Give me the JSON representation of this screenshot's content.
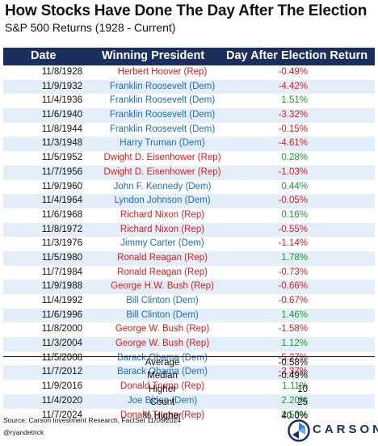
{
  "title": "How Stocks Have Done The Day After The Election",
  "subtitle": "S&P 500 Returns (1928 - Current)",
  "columns": {
    "date": "Date",
    "president": "Winning President",
    "return": "Day After Election Return"
  },
  "colors": {
    "header_bg": "#1b2f5e",
    "rep": "#e01b1b",
    "dem": "#1a6cc4",
    "negative": "#e01b1b",
    "positive": "#1a9a2e",
    "stripe": "#e4eef9"
  },
  "rows": [
    {
      "date": "11/8/1928",
      "president": "Herbert Hoover (Rep)",
      "party": "rep",
      "return": "-0.49%",
      "sign": "neg"
    },
    {
      "date": "11/9/1932",
      "president": "Franklin Roosevelt (Dem)",
      "party": "dem",
      "return": "-4.42%",
      "sign": "neg"
    },
    {
      "date": "11/4/1936",
      "president": "Franklin Roosevelt (Dem)",
      "party": "dem",
      "return": "1.51%",
      "sign": "pos"
    },
    {
      "date": "11/6/1940",
      "president": "Franklin Roosevelt (Dem)",
      "party": "dem",
      "return": "-3.32%",
      "sign": "neg"
    },
    {
      "date": "11/8/1944",
      "president": "Franklin Roosevelt (Dem)",
      "party": "dem",
      "return": "-0.15%",
      "sign": "neg"
    },
    {
      "date": "11/3/1948",
      "president": "Harry Truman (Dem)",
      "party": "dem",
      "return": "-4.61%",
      "sign": "neg"
    },
    {
      "date": "11/5/1952",
      "president": "Dwight D. Eisenhower (Rep)",
      "party": "rep",
      "return": "0.28%",
      "sign": "pos"
    },
    {
      "date": "11/7/1956",
      "president": "Dwight D. Eisenhower (Rep)",
      "party": "rep",
      "return": "-1.03%",
      "sign": "neg"
    },
    {
      "date": "11/9/1960",
      "president": "John F. Kennedy (Dem)",
      "party": "dem",
      "return": "0.44%",
      "sign": "pos"
    },
    {
      "date": "11/4/1964",
      "president": "Lyndon Johnson (Dem)",
      "party": "dem",
      "return": "-0.05%",
      "sign": "neg"
    },
    {
      "date": "11/6/1968",
      "president": "Richard Nixon (Rep)",
      "party": "rep",
      "return": "0.16%",
      "sign": "pos"
    },
    {
      "date": "11/8/1972",
      "president": "Richard Nixon (Rep)",
      "party": "rep",
      "return": "-0.55%",
      "sign": "neg"
    },
    {
      "date": "11/3/1976",
      "president": "Jimmy Carter (Dem)",
      "party": "dem",
      "return": "-1.14%",
      "sign": "neg"
    },
    {
      "date": "11/5/1980",
      "president": "Ronald Reagan (Rep)",
      "party": "rep",
      "return": "1.78%",
      "sign": "pos"
    },
    {
      "date": "11/7/1984",
      "president": "Ronald Reagan (Rep)",
      "party": "rep",
      "return": "-0.73%",
      "sign": "neg"
    },
    {
      "date": "11/9/1988",
      "president": "George H.W. Bush (Rep)",
      "party": "rep",
      "return": "-0.66%",
      "sign": "neg"
    },
    {
      "date": "11/4/1992",
      "president": "Bill Clinton (Dem)",
      "party": "dem",
      "return": "-0.67%",
      "sign": "neg"
    },
    {
      "date": "11/6/1996",
      "president": "Bill Clinton (Dem)",
      "party": "dem",
      "return": "1.46%",
      "sign": "pos"
    },
    {
      "date": "11/8/2000",
      "president": "George W. Bush (Rep)",
      "party": "rep",
      "return": "-1.58%",
      "sign": "neg"
    },
    {
      "date": "11/3/2004",
      "president": "George W. Bush (Rep)",
      "party": "rep",
      "return": "1.12%",
      "sign": "pos"
    },
    {
      "date": "11/5/2008",
      "president": "Barack Obama (Dem)",
      "party": "dem",
      "return": "-5.27%",
      "sign": "neg"
    },
    {
      "date": "11/7/2012",
      "president": "Barack Obama (Dem)",
      "party": "dem",
      "return": "-2.37%",
      "sign": "neg"
    },
    {
      "date": "11/9/2016",
      "president": "Donald Trump (Rep)",
      "party": "rep",
      "return": "1.11%",
      "sign": "pos"
    },
    {
      "date": "11/4/2020",
      "president": "Joe Biden (Dem)",
      "party": "dem",
      "return": "2.20%",
      "sign": "pos"
    },
    {
      "date": "11/7/2024",
      "president": "Donald Trump (Rep)",
      "party": "rep",
      "return": "2.53%",
      "sign": "pos"
    }
  ],
  "summary": [
    {
      "label": "Average",
      "value": "-0.58%",
      "sign": "neg"
    },
    {
      "label": "Median",
      "value": "-0.49%",
      "sign": "neg"
    },
    {
      "label": "Higher",
      "value": "10",
      "sign": "none"
    },
    {
      "label": "Count",
      "value": "25",
      "sign": "none"
    },
    {
      "label": "% Higher",
      "value": "40.0%",
      "sign": "none"
    }
  ],
  "footer": {
    "source": "Source: Carson Investment Research, FactSet 11/06/2024",
    "handle": "@ryandetrick"
  },
  "logo": {
    "text": "CARSON",
    "icon": "carson-circle-logo-icon"
  }
}
